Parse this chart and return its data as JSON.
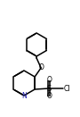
{
  "bg_color": "#ffffff",
  "N_color": "#2020b0",
  "line_color": "#000000",
  "lw": 1.1,
  "figsize": [
    0.9,
    1.31
  ],
  "dpi": 100,
  "xlim": [
    0,
    90
  ],
  "ylim": [
    0,
    131
  ]
}
